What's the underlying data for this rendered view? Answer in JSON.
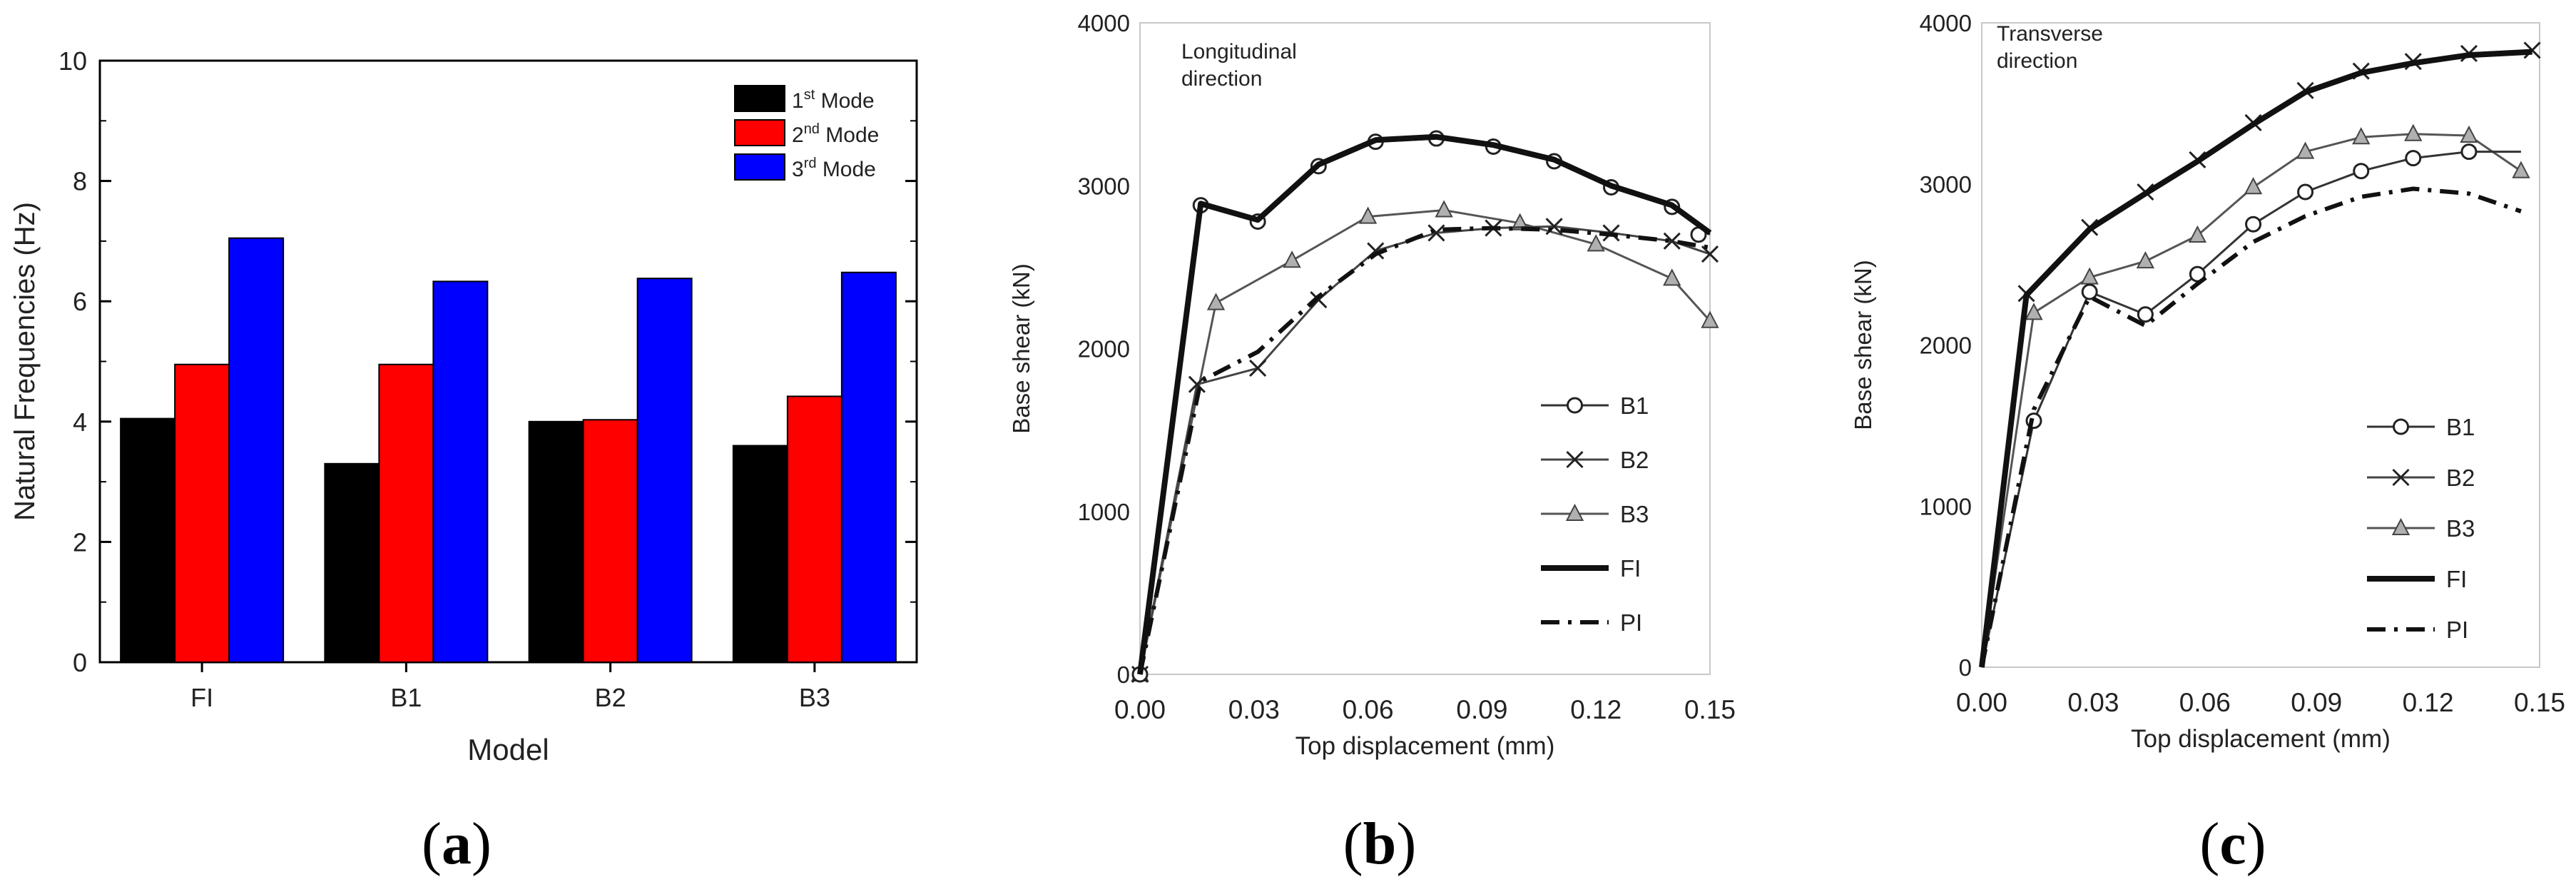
{
  "figure": {
    "captions": [
      {
        "open": "(",
        "letter": "a",
        "close": ")"
      },
      {
        "open": "(",
        "letter": "b",
        "close": ")"
      },
      {
        "open": "(",
        "letter": "c",
        "close": ")"
      }
    ]
  },
  "chart_data": [
    {
      "type": "bar",
      "title": "",
      "xlabel": "Model",
      "ylabel": "Natural Frequencies (Hz)",
      "categories": [
        "FI",
        "B1",
        "B2",
        "B3"
      ],
      "ylim": [
        0,
        10
      ],
      "yticks": [
        "0",
        "2",
        "4",
        "6",
        "8",
        "10"
      ],
      "legend_position": "top-right",
      "series": [
        {
          "name_base": "1",
          "name_sup": "st",
          "name_rest": " Mode",
          "color": "#000000",
          "values": [
            4.05,
            3.3,
            4.0,
            3.6
          ]
        },
        {
          "name_base": "2",
          "name_sup": "nd",
          "name_rest": " Mode",
          "color": "#ff0000",
          "values": [
            4.95,
            4.95,
            4.03,
            4.42
          ]
        },
        {
          "name_base": "3",
          "name_sup": "rd",
          "name_rest": " Mode",
          "color": "#0000ff",
          "values": [
            7.05,
            6.33,
            6.38,
            6.48
          ]
        }
      ]
    },
    {
      "type": "line",
      "title": "",
      "annotation": [
        "Longitudinal",
        "direction"
      ],
      "xlabel": "Top displacement (mm)",
      "ylabel": "Base shear (kN)",
      "xlim": [
        0,
        0.15
      ],
      "ylim": [
        0,
        4000
      ],
      "xticks": [
        "0.00",
        "0.03",
        "0.06",
        "0.09",
        "0.12",
        "0.15"
      ],
      "yticks": [
        "0",
        "1000",
        "2000",
        "3000",
        "4000"
      ],
      "legend_position": "right",
      "series": [
        {
          "name": "B1",
          "marker": "circle",
          "x": [
            0.0,
            0.016,
            0.031,
            0.047,
            0.062,
            0.078,
            0.093,
            0.109,
            0.124,
            0.14,
            0.15
          ],
          "y": [
            0,
            2880,
            2780,
            3120,
            3270,
            3290,
            3240,
            3150,
            2990,
            2870,
            2700
          ],
          "marker_x": [
            0.0,
            0.016,
            0.031,
            0.047,
            0.062,
            0.078,
            0.093,
            0.109,
            0.124,
            0.14,
            0.147
          ],
          "marker_y": [
            0,
            2880,
            2780,
            3120,
            3270,
            3290,
            3240,
            3150,
            2990,
            2870,
            2700
          ]
        },
        {
          "name": "B2",
          "marker": "x",
          "x": [
            0.0,
            0.015,
            0.031,
            0.047,
            0.062,
            0.078,
            0.093,
            0.109,
            0.124,
            0.14,
            0.15
          ],
          "y": [
            0,
            1780,
            1880,
            2300,
            2600,
            2710,
            2740,
            2750,
            2710,
            2660,
            2580
          ],
          "marker_x": [
            0.0,
            0.015,
            0.031,
            0.047,
            0.062,
            0.078,
            0.093,
            0.109,
            0.124,
            0.14,
            0.15
          ],
          "marker_y": [
            0,
            1780,
            1880,
            2300,
            2600,
            2710,
            2740,
            2750,
            2710,
            2660,
            2580
          ]
        },
        {
          "name": "B3",
          "marker": "triangle",
          "x": [
            0.0,
            0.02,
            0.04,
            0.06,
            0.08,
            0.1,
            0.12,
            0.14,
            0.15
          ],
          "y": [
            0,
            2280,
            2540,
            2810,
            2850,
            2770,
            2640,
            2430,
            2170
          ],
          "marker_x": [
            0.0,
            0.02,
            0.04,
            0.06,
            0.08,
            0.1,
            0.12,
            0.14,
            0.15
          ],
          "marker_y": [
            0,
            2280,
            2540,
            2810,
            2850,
            2770,
            2640,
            2430,
            2170
          ]
        },
        {
          "name": "FI",
          "marker": "none",
          "x": [
            0.0,
            0.016,
            0.031,
            0.047,
            0.062,
            0.078,
            0.093,
            0.109,
            0.124,
            0.14,
            0.15
          ],
          "y": [
            0,
            2890,
            2790,
            3130,
            3280,
            3300,
            3250,
            3160,
            3000,
            2880,
            2710
          ],
          "marker_x": [],
          "marker_y": []
        },
        {
          "name": "PI",
          "marker": "none",
          "x": [
            0.0,
            0.016,
            0.031,
            0.047,
            0.062,
            0.078,
            0.093,
            0.109,
            0.124,
            0.14,
            0.15
          ],
          "y": [
            0,
            1800,
            1980,
            2320,
            2580,
            2730,
            2740,
            2730,
            2700,
            2660,
            2620
          ],
          "marker_x": [],
          "marker_y": []
        }
      ]
    },
    {
      "type": "line",
      "title": "",
      "annotation": [
        "Transverse",
        "direction"
      ],
      "xlabel": "Top displacement (mm)",
      "ylabel": "Base shear (kN)",
      "xlim": [
        0,
        0.15
      ],
      "ylim": [
        0,
        4000
      ],
      "xticks": [
        "0.00",
        "0.03",
        "0.06",
        "0.09",
        "0.12",
        "0.15"
      ],
      "yticks": [
        "0",
        "1000",
        "2000",
        "3000",
        "4000"
      ],
      "legend_position": "right",
      "series": [
        {
          "name": "B1",
          "marker": "circle",
          "x": [
            0.0,
            0.014,
            0.029,
            0.044,
            0.058,
            0.073,
            0.087,
            0.102,
            0.116,
            0.131,
            0.145
          ],
          "y": [
            0,
            1530,
            2330,
            2190,
            2440,
            2750,
            2950,
            3080,
            3160,
            3200,
            3200
          ],
          "marker_x": [
            0.014,
            0.029,
            0.044,
            0.058,
            0.073,
            0.087,
            0.102,
            0.116,
            0.131
          ],
          "marker_y": [
            1530,
            2330,
            2190,
            2440,
            2750,
            2950,
            3080,
            3160,
            3200
          ]
        },
        {
          "name": "B2",
          "marker": "x",
          "x": [
            0.0,
            0.012,
            0.029,
            0.044,
            0.058,
            0.073,
            0.087,
            0.102,
            0.116,
            0.131,
            0.148
          ],
          "y": [
            0,
            2320,
            2730,
            2950,
            3150,
            3380,
            3580,
            3700,
            3760,
            3810,
            3830
          ],
          "marker_x": [
            0.012,
            0.029,
            0.044,
            0.058,
            0.073,
            0.087,
            0.102,
            0.116,
            0.131,
            0.148
          ],
          "marker_y": [
            2320,
            2730,
            2950,
            3150,
            3380,
            3580,
            3700,
            3760,
            3810,
            3830
          ]
        },
        {
          "name": "B3",
          "marker": "triangle",
          "x": [
            0.0,
            0.014,
            0.029,
            0.044,
            0.058,
            0.073,
            0.087,
            0.102,
            0.116,
            0.131,
            0.145
          ],
          "y": [
            0,
            2200,
            2420,
            2520,
            2680,
            2980,
            3200,
            3290,
            3310,
            3300,
            3080
          ],
          "marker_x": [
            0.014,
            0.029,
            0.044,
            0.058,
            0.073,
            0.087,
            0.102,
            0.116,
            0.131,
            0.145
          ],
          "marker_y": [
            2200,
            2420,
            2520,
            2680,
            2980,
            3200,
            3290,
            3310,
            3300,
            3080
          ]
        },
        {
          "name": "FI",
          "marker": "none",
          "x": [
            0.0,
            0.012,
            0.029,
            0.044,
            0.058,
            0.073,
            0.087,
            0.102,
            0.116,
            0.131,
            0.148
          ],
          "y": [
            0,
            2310,
            2720,
            2940,
            3140,
            3370,
            3570,
            3690,
            3750,
            3800,
            3820
          ],
          "marker_x": [],
          "marker_y": []
        },
        {
          "name": "PI",
          "marker": "none",
          "x": [
            0.0,
            0.014,
            0.029,
            0.044,
            0.058,
            0.073,
            0.087,
            0.102,
            0.116,
            0.131,
            0.145
          ],
          "y": [
            0,
            1600,
            2300,
            2120,
            2380,
            2640,
            2800,
            2920,
            2970,
            2940,
            2830
          ],
          "marker_x": [],
          "marker_y": []
        }
      ]
    }
  ]
}
